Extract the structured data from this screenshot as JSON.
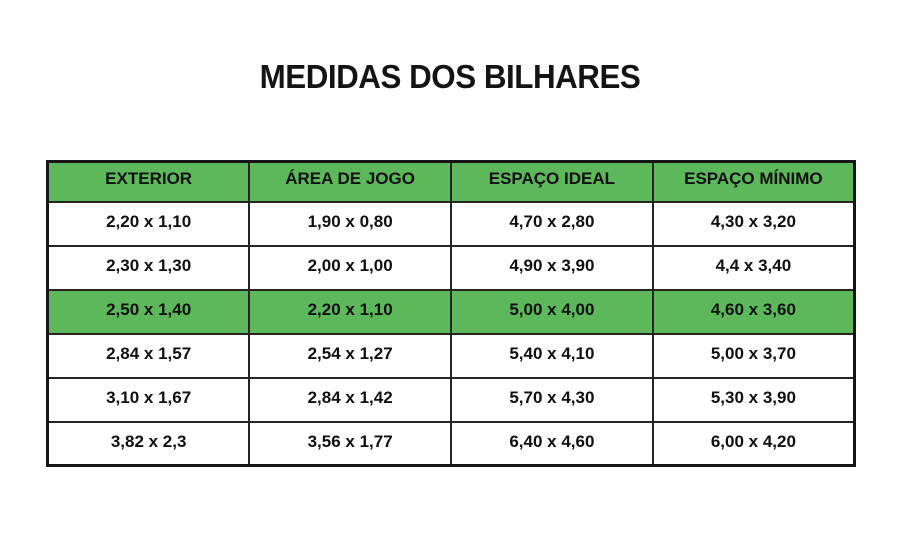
{
  "title": "MEDIDAS DOS BILHARES",
  "table": {
    "columns": [
      "EXTERIOR",
      "ÁREA DE JOGO",
      "ESPAÇO IDEAL",
      "ESPAÇO MÍNIMO"
    ],
    "rows": [
      {
        "highlighted": false,
        "cells": [
          "2,20 x 1,10",
          "1,90 x 0,80",
          "4,70 x 2,80",
          "4,30 x 3,20"
        ]
      },
      {
        "highlighted": false,
        "cells": [
          "2,30 x 1,30",
          "2,00 x 1,00",
          "4,90 x 3,90",
          "4,4 x 3,40"
        ]
      },
      {
        "highlighted": true,
        "cells": [
          "2,50 x 1,40",
          "2,20 x 1,10",
          "5,00 x 4,00",
          "4,60 x 3,60"
        ]
      },
      {
        "highlighted": false,
        "cells": [
          "2,84 x 1,57",
          "2,54 x 1,27",
          "5,40 x 4,10",
          "5,00 x 3,70"
        ]
      },
      {
        "highlighted": false,
        "cells": [
          "3,10 x 1,67",
          "2,84 x 1,42",
          "5,70 x 4,30",
          "5,30 x 3,90"
        ]
      },
      {
        "highlighted": false,
        "cells": [
          "3,82 x 2,3",
          "3,56 x 1,77",
          "6,40 x 4,60",
          "6,00 x 4,20"
        ]
      }
    ]
  },
  "colors": {
    "highlight_green": "#5cb85a",
    "border_dark": "#1a1a1a",
    "text": "#101010"
  }
}
